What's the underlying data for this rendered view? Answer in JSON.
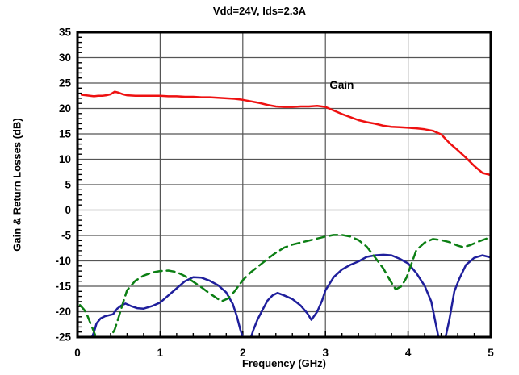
{
  "chart_data": {
    "type": "line",
    "title": "Vdd=24V, Ids=2.3A",
    "xlabel": "Frequency (GHz)",
    "ylabel": "Gain & Return Losses (dB)",
    "xlim": [
      0,
      5
    ],
    "ylim": [
      -25,
      35
    ],
    "x_ticks": [
      0,
      1,
      2,
      3,
      4,
      5
    ],
    "y_ticks": [
      35,
      30,
      25,
      20,
      15,
      10,
      5,
      0,
      -5,
      -10,
      -15,
      -20,
      -25
    ],
    "x_minor_step": 0.2,
    "y_minor_step": 1,
    "grid": true,
    "legend_position": "none",
    "annotations": [
      {
        "text": "Gain",
        "x": 3.05,
        "y": 23.9,
        "color": "#000000"
      }
    ],
    "series": [
      {
        "id": "gain",
        "label": "Gain",
        "color": "#ee1111",
        "style": "solid",
        "points": [
          [
            0.05,
            22.7
          ],
          [
            0.1,
            22.6
          ],
          [
            0.15,
            22.5
          ],
          [
            0.2,
            22.4
          ],
          [
            0.25,
            22.5
          ],
          [
            0.3,
            22.5
          ],
          [
            0.35,
            22.6
          ],
          [
            0.4,
            22.8
          ],
          [
            0.45,
            23.3
          ],
          [
            0.5,
            23.1
          ],
          [
            0.55,
            22.8
          ],
          [
            0.6,
            22.6
          ],
          [
            0.7,
            22.5
          ],
          [
            0.8,
            22.5
          ],
          [
            0.9,
            22.5
          ],
          [
            1.0,
            22.5
          ],
          [
            1.1,
            22.4
          ],
          [
            1.2,
            22.4
          ],
          [
            1.3,
            22.3
          ],
          [
            1.4,
            22.3
          ],
          [
            1.5,
            22.2
          ],
          [
            1.6,
            22.2
          ],
          [
            1.7,
            22.1
          ],
          [
            1.8,
            22.0
          ],
          [
            1.9,
            21.9
          ],
          [
            2.0,
            21.7
          ],
          [
            2.1,
            21.4
          ],
          [
            2.2,
            21.1
          ],
          [
            2.3,
            20.7
          ],
          [
            2.4,
            20.4
          ],
          [
            2.5,
            20.3
          ],
          [
            2.6,
            20.3
          ],
          [
            2.7,
            20.4
          ],
          [
            2.8,
            20.4
          ],
          [
            2.9,
            20.5
          ],
          [
            3.0,
            20.3
          ],
          [
            3.1,
            19.6
          ],
          [
            3.2,
            18.9
          ],
          [
            3.3,
            18.3
          ],
          [
            3.4,
            17.7
          ],
          [
            3.5,
            17.3
          ],
          [
            3.6,
            17.0
          ],
          [
            3.7,
            16.6
          ],
          [
            3.8,
            16.4
          ],
          [
            3.9,
            16.3
          ],
          [
            4.0,
            16.2
          ],
          [
            4.1,
            16.1
          ],
          [
            4.2,
            15.9
          ],
          [
            4.3,
            15.6
          ],
          [
            4.4,
            14.9
          ],
          [
            4.5,
            13.2
          ],
          [
            4.6,
            11.8
          ],
          [
            4.7,
            10.3
          ],
          [
            4.8,
            8.7
          ],
          [
            4.9,
            7.3
          ],
          [
            5.0,
            6.9
          ]
        ]
      },
      {
        "id": "return-loss-blue",
        "label": "",
        "color": "#1f1f9c",
        "style": "solid",
        "points": [
          [
            0.15,
            -26.0
          ],
          [
            0.2,
            -24.0
          ],
          [
            0.23,
            -22.3
          ],
          [
            0.28,
            -21.3
          ],
          [
            0.33,
            -20.9
          ],
          [
            0.38,
            -20.7
          ],
          [
            0.43,
            -20.5
          ],
          [
            0.48,
            -19.4
          ],
          [
            0.53,
            -18.8
          ],
          [
            0.58,
            -18.4
          ],
          [
            0.65,
            -18.9
          ],
          [
            0.72,
            -19.3
          ],
          [
            0.8,
            -19.4
          ],
          [
            0.9,
            -18.9
          ],
          [
            1.0,
            -18.2
          ],
          [
            1.1,
            -16.8
          ],
          [
            1.2,
            -15.4
          ],
          [
            1.3,
            -14.0
          ],
          [
            1.4,
            -13.2
          ],
          [
            1.5,
            -13.3
          ],
          [
            1.6,
            -13.9
          ],
          [
            1.7,
            -14.8
          ],
          [
            1.8,
            -16.2
          ],
          [
            1.88,
            -18.5
          ],
          [
            1.93,
            -21.0
          ],
          [
            1.97,
            -23.5
          ],
          [
            2.02,
            -26.0
          ],
          [
            2.08,
            -26.0
          ],
          [
            2.13,
            -23.5
          ],
          [
            2.18,
            -21.5
          ],
          [
            2.25,
            -19.3
          ],
          [
            2.3,
            -17.8
          ],
          [
            2.36,
            -16.8
          ],
          [
            2.42,
            -16.3
          ],
          [
            2.5,
            -16.8
          ],
          [
            2.6,
            -17.5
          ],
          [
            2.7,
            -18.8
          ],
          [
            2.78,
            -20.3
          ],
          [
            2.83,
            -21.6
          ],
          [
            2.9,
            -20.0
          ],
          [
            2.96,
            -17.8
          ],
          [
            3.0,
            -15.8
          ],
          [
            3.1,
            -13.2
          ],
          [
            3.2,
            -11.7
          ],
          [
            3.3,
            -10.8
          ],
          [
            3.4,
            -10.1
          ],
          [
            3.5,
            -9.2
          ],
          [
            3.6,
            -8.9
          ],
          [
            3.7,
            -8.8
          ],
          [
            3.8,
            -8.9
          ],
          [
            3.9,
            -9.6
          ],
          [
            4.0,
            -10.5
          ],
          [
            4.1,
            -12.4
          ],
          [
            4.2,
            -14.9
          ],
          [
            4.28,
            -18.0
          ],
          [
            4.33,
            -22.0
          ],
          [
            4.38,
            -26.0
          ],
          [
            4.44,
            -26.0
          ],
          [
            4.5,
            -21.5
          ],
          [
            4.56,
            -16.0
          ],
          [
            4.62,
            -13.5
          ],
          [
            4.7,
            -10.8
          ],
          [
            4.8,
            -9.4
          ],
          [
            4.9,
            -8.9
          ],
          [
            5.0,
            -9.3
          ]
        ]
      },
      {
        "id": "return-loss-green",
        "label": "",
        "color": "#0c7f14",
        "style": "dashed",
        "points": [
          [
            0.03,
            -18.7
          ],
          [
            0.08,
            -19.6
          ],
          [
            0.12,
            -20.8
          ],
          [
            0.17,
            -22.8
          ],
          [
            0.22,
            -24.8
          ],
          [
            0.28,
            -26.5
          ],
          [
            0.34,
            -26.5
          ],
          [
            0.4,
            -25.0
          ],
          [
            0.45,
            -23.5
          ],
          [
            0.5,
            -21.0
          ],
          [
            0.55,
            -18.3
          ],
          [
            0.6,
            -15.8
          ],
          [
            0.7,
            -13.9
          ],
          [
            0.8,
            -12.9
          ],
          [
            0.9,
            -12.3
          ],
          [
            1.0,
            -12.0
          ],
          [
            1.1,
            -11.9
          ],
          [
            1.2,
            -12.2
          ],
          [
            1.3,
            -13.0
          ],
          [
            1.4,
            -14.1
          ],
          [
            1.5,
            -15.2
          ],
          [
            1.6,
            -16.4
          ],
          [
            1.7,
            -17.5
          ],
          [
            1.75,
            -17.9
          ],
          [
            1.82,
            -17.4
          ],
          [
            1.9,
            -16.0
          ],
          [
            2.0,
            -13.8
          ],
          [
            2.1,
            -12.2
          ],
          [
            2.2,
            -10.9
          ],
          [
            2.3,
            -9.6
          ],
          [
            2.4,
            -8.4
          ],
          [
            2.5,
            -7.4
          ],
          [
            2.6,
            -6.8
          ],
          [
            2.7,
            -6.4
          ],
          [
            2.8,
            -6.0
          ],
          [
            2.9,
            -5.6
          ],
          [
            3.0,
            -5.2
          ],
          [
            3.1,
            -4.9
          ],
          [
            3.2,
            -4.9
          ],
          [
            3.3,
            -5.2
          ],
          [
            3.4,
            -5.9
          ],
          [
            3.5,
            -7.2
          ],
          [
            3.6,
            -9.3
          ],
          [
            3.7,
            -11.5
          ],
          [
            3.78,
            -13.8
          ],
          [
            3.85,
            -15.6
          ],
          [
            3.92,
            -15.0
          ],
          [
            3.98,
            -13.3
          ],
          [
            4.04,
            -10.6
          ],
          [
            4.1,
            -7.9
          ],
          [
            4.2,
            -6.4
          ],
          [
            4.3,
            -5.7
          ],
          [
            4.4,
            -5.9
          ],
          [
            4.5,
            -6.3
          ],
          [
            4.6,
            -7.0
          ],
          [
            4.67,
            -7.3
          ],
          [
            4.75,
            -6.9
          ],
          [
            4.85,
            -6.2
          ],
          [
            4.95,
            -5.6
          ],
          [
            5.0,
            -5.5
          ]
        ]
      }
    ],
    "colors": {
      "frame": "#000000",
      "grid": "#555555",
      "background": "#ffffff"
    }
  }
}
